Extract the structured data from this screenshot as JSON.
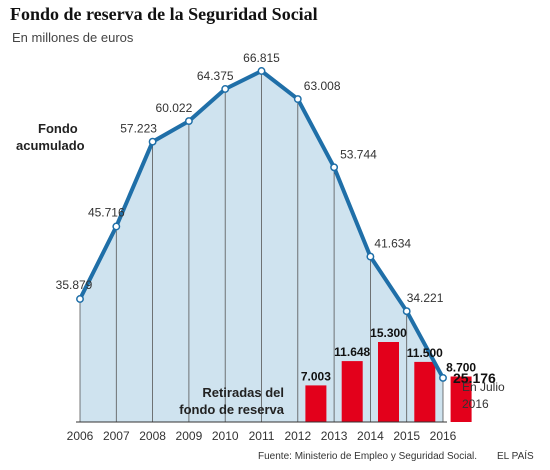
{
  "title": "Fondo de reserva de la Seguridad Social",
  "subtitle": "En millones de euros",
  "chart_data": {
    "type": "area",
    "x": [
      "2006",
      "2007",
      "2008",
      "2009",
      "2010",
      "2011",
      "2012",
      "2013",
      "2014",
      "2015",
      "2016"
    ],
    "series": [
      {
        "name": "Fondo acumulado",
        "type": "area",
        "values": [
          35.879,
          45.716,
          57.223,
          60.022,
          64.375,
          66.815,
          63.008,
          53.744,
          41.634,
          34.221,
          25.176
        ],
        "labels": [
          "35.879",
          "45.716",
          "57.223",
          "60.022",
          "64.375",
          "66.815",
          "63.008",
          "53.744",
          "41.634",
          "34.221",
          "25.176"
        ]
      },
      {
        "name": "Retiradas del fondo de reserva",
        "type": "bar",
        "x": [
          "2012",
          "2013",
          "2014",
          "2015",
          "2016"
        ],
        "values": [
          7.003,
          11.648,
          15.3,
          11.5,
          8.7
        ],
        "labels": [
          "7.003",
          "11.648",
          "15.300",
          "11.500",
          "8.700"
        ]
      }
    ],
    "series_labels": {
      "fondo_line1": "Fondo",
      "fondo_line2": "acumulado",
      "retiradas_line1": "Retiradas del",
      "retiradas_line2": "fondo de reserva"
    },
    "note_line1": "En Julio",
    "note_line2": "2016",
    "colors": {
      "line": "#1f6fa8",
      "area": "#cfe3ef",
      "bar": "#e3001b",
      "gridline": "#555555"
    }
  },
  "source": "Fuente: Ministerio de Empleo y Seguridad Social.",
  "brand": "EL PAÍS"
}
